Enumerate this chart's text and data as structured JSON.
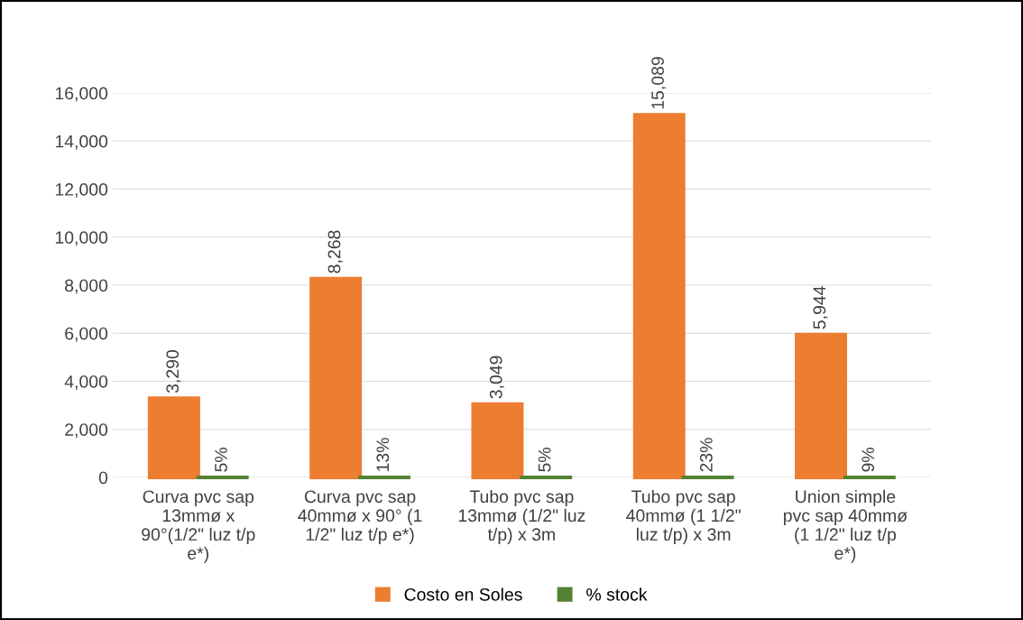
{
  "chart_data": {
    "type": "bar",
    "categories": [
      "Curva pvc sap\n13mmø x\n90°(1/2\" luz t/p\ne*)",
      "Curva pvc sap\n40mmø x 90° (1\n1/2\" luz t/p e*)",
      "Tubo pvc sap\n13mmø (1/2\" luz\nt/p) x 3m",
      "Tubo pvc sap\n40mmø (1 1/2\"\nluz t/p) x 3m",
      "Union simple\npvc sap 40mmø\n(1 1/2\" luz t/p\ne*)"
    ],
    "series": [
      {
        "name": "Costo en Soles",
        "color": "#ed7d31",
        "values": [
          3290,
          8268,
          3049,
          15089,
          5944
        ],
        "value_labels": [
          "3,290",
          "8,268",
          "3,049",
          "15,089",
          "5,944"
        ]
      },
      {
        "name": "% stock",
        "color": "#548235",
        "values": [
          0.05,
          0.13,
          0.05,
          0.23,
          0.09
        ],
        "value_labels": [
          "5%",
          "13%",
          "5%",
          "23%",
          "9%"
        ]
      }
    ],
    "ylim": [
      0,
      16000
    ],
    "yticks": [
      {
        "value": 0,
        "label": "0"
      },
      {
        "value": 2000,
        "label": "2,000"
      },
      {
        "value": 4000,
        "label": "4,000"
      },
      {
        "value": 6000,
        "label": "6,000"
      },
      {
        "value": 8000,
        "label": "8,000"
      },
      {
        "value": 10000,
        "label": "10,000"
      },
      {
        "value": 12000,
        "label": "12,000"
      },
      {
        "value": 14000,
        "label": "14,000"
      },
      {
        "value": 16000,
        "label": "16,000"
      }
    ],
    "grid": "y",
    "legend": "bottom"
  }
}
